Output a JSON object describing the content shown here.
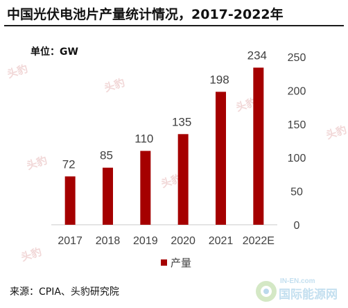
{
  "page": {
    "title": "中国光伏电池片产量统计情况，2017-2022年",
    "unit_label": "单位：GW",
    "source": "来源：CPIA、头豹研究院",
    "watermark_text": "头豹",
    "logo_text": "国际能源网",
    "logo_subtext": "IN-EN.com"
  },
  "chart_data": {
    "type": "bar",
    "title": "中国光伏电池片产量统计情况，2017-2022年",
    "xlabel": "",
    "ylabel": "",
    "categories": [
      "2017",
      "2018",
      "2019",
      "2020",
      "2021",
      "2022E"
    ],
    "series": [
      {
        "name": "产量",
        "values": [
          72,
          85,
          110,
          135,
          198,
          234
        ],
        "color": "#a50000"
      }
    ],
    "ylim": [
      0,
      250
    ],
    "yticks": [
      0,
      50,
      100,
      150,
      200,
      250
    ],
    "y_axis_side": "right",
    "data_labels": true,
    "grid": false,
    "legend": "bottom-center"
  }
}
